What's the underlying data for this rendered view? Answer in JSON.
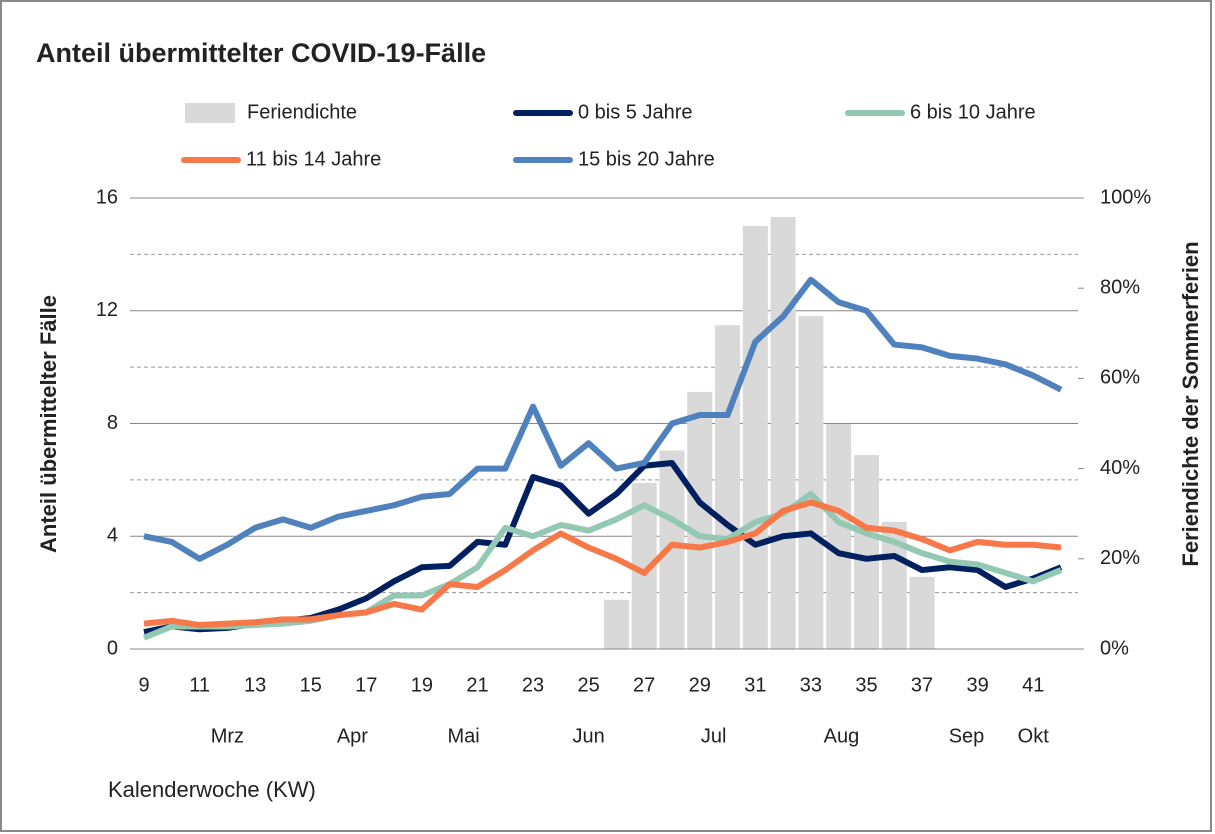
{
  "chart_data": {
    "type": "line",
    "title": "Anteil übermittelter COVID-19-Fälle",
    "x_label": "Kalenderwoche (KW)",
    "y_label": "Anteil übermittelter Fälle",
    "y2_label": "Feriendichte der Sommerferien",
    "x": [
      9,
      10,
      11,
      12,
      13,
      14,
      15,
      16,
      17,
      18,
      19,
      20,
      21,
      22,
      23,
      24,
      25,
      26,
      27,
      28,
      29,
      30,
      31,
      32,
      33,
      34,
      35,
      36,
      37,
      38,
      39,
      40,
      41,
      42
    ],
    "xlim": [
      9,
      42
    ],
    "xticks": [
      9,
      11,
      13,
      15,
      17,
      19,
      21,
      23,
      25,
      27,
      29,
      31,
      33,
      35,
      37,
      39,
      41
    ],
    "month_labels": [
      {
        "value": 12,
        "label": "Mrz"
      },
      {
        "value": 16.5,
        "label": "Apr"
      },
      {
        "value": 20.5,
        "label": "Mai"
      },
      {
        "value": 25,
        "label": "Jun"
      },
      {
        "value": 29.5,
        "label": "Jul"
      },
      {
        "value": 34.1,
        "label": "Aug"
      },
      {
        "value": 38.6,
        "label": "Sep"
      },
      {
        "value": 41,
        "label": "Okt"
      }
    ],
    "ylim": [
      0,
      16
    ],
    "yticks": [
      0,
      4,
      8,
      12,
      16
    ],
    "minor_yticks": [
      2,
      6,
      10,
      14
    ],
    "y2lim": [
      0,
      100
    ],
    "y2ticks": [
      {
        "value": 0,
        "label": "0%"
      },
      {
        "value": 20,
        "label": "20%"
      },
      {
        "value": 40,
        "label": "40%"
      },
      {
        "value": 60,
        "label": "60%"
      },
      {
        "value": 80,
        "label": "80%"
      },
      {
        "value": 100,
        "label": "100%"
      }
    ],
    "grid": true,
    "series": [
      {
        "name": "Feriendichte",
        "type": "bar",
        "axis": "y2",
        "color": "#d9d9d9",
        "x": [
          26,
          27,
          28,
          29,
          30,
          31,
          32,
          33,
          34,
          35,
          36,
          37
        ],
        "values": [
          10.9,
          36.8,
          44,
          57,
          71.8,
          93.8,
          95.8,
          73.8,
          49.9,
          43,
          28.2,
          16
        ]
      },
      {
        "name": "0 bis 5 Jahre",
        "color": "#002060",
        "values": [
          0.6,
          0.8,
          0.7,
          0.75,
          0.9,
          1.0,
          1.1,
          1.4,
          1.8,
          2.4,
          2.9,
          2.95,
          3.8,
          3.7,
          6.1,
          5.8,
          4.8,
          5.5,
          6.5,
          6.6,
          5.2,
          4.4,
          3.7,
          4.0,
          4.1,
          3.4,
          3.2,
          3.3,
          2.8,
          2.9,
          2.8,
          2.2,
          2.5,
          2.9
        ]
      },
      {
        "name": "6 bis 10 Jahre",
        "color": "#93c9b3",
        "values": [
          0.4,
          0.8,
          0.8,
          0.8,
          0.85,
          0.9,
          1.0,
          1.2,
          1.3,
          1.9,
          1.9,
          2.3,
          2.9,
          4.3,
          4.0,
          4.4,
          4.2,
          4.6,
          5.1,
          4.6,
          4.0,
          3.9,
          4.5,
          4.8,
          5.5,
          4.5,
          4.1,
          3.8,
          3.4,
          3.1,
          3.0,
          2.7,
          2.4,
          2.8
        ]
      },
      {
        "name": "11 bis 14 Jahre",
        "color": "#f7794a",
        "values": [
          0.9,
          1.0,
          0.85,
          0.9,
          0.95,
          1.05,
          1.05,
          1.2,
          1.3,
          1.6,
          1.4,
          2.3,
          2.2,
          2.8,
          3.5,
          4.1,
          3.6,
          3.2,
          2.7,
          3.7,
          3.6,
          3.8,
          4.1,
          4.9,
          5.2,
          4.9,
          4.3,
          4.2,
          3.9,
          3.5,
          3.8,
          3.7,
          3.7,
          3.6
        ]
      },
      {
        "name": "15 bis 20 Jahre",
        "color": "#4f81bd",
        "values": [
          4.0,
          3.8,
          3.2,
          3.7,
          4.3,
          4.6,
          4.3,
          4.7,
          4.9,
          5.1,
          5.4,
          5.5,
          6.4,
          6.4,
          8.6,
          6.5,
          7.3,
          6.4,
          6.6,
          8.0,
          8.3,
          8.3,
          10.9,
          11.8,
          13.1,
          12.3,
          12.0,
          10.8,
          10.7,
          10.4,
          10.3,
          10.1,
          9.7,
          9.2
        ]
      }
    ]
  }
}
